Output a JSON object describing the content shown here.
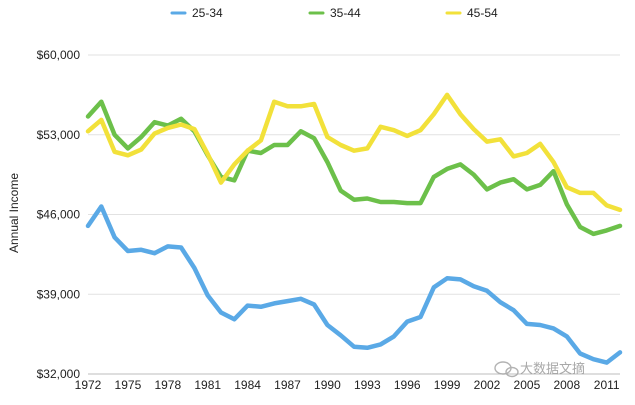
{
  "chart_data": {
    "type": "line",
    "ylabel": "Annual Income",
    "ylim": [
      32000,
      60000
    ],
    "y_ticks": [
      32000,
      39000,
      46000,
      53000,
      60000
    ],
    "y_tick_labels": [
      "$32,000",
      "$39,000",
      "$46,000",
      "$53,000",
      "$60,000"
    ],
    "xlim": [
      1972,
      2012
    ],
    "x_ticks": [
      1972,
      1975,
      1978,
      1981,
      1984,
      1987,
      1990,
      1993,
      1996,
      1999,
      2002,
      2005,
      2008,
      2011
    ],
    "x_tick_labels": [
      "1972",
      "1975",
      "1978",
      "1981",
      "1984",
      "1987",
      "1990",
      "1993",
      "1996",
      "1999",
      "2002",
      "2005",
      "2008",
      "2011"
    ],
    "grid": "horizontal",
    "legend_position": "top",
    "x": [
      1972,
      1973,
      1974,
      1975,
      1976,
      1977,
      1978,
      1979,
      1980,
      1981,
      1982,
      1983,
      1984,
      1985,
      1986,
      1987,
      1988,
      1989,
      1990,
      1991,
      1992,
      1993,
      1994,
      1995,
      1996,
      1997,
      1998,
      1999,
      2000,
      2001,
      2002,
      2003,
      2004,
      2005,
      2006,
      2007,
      2008,
      2009,
      2010,
      2011,
      2012
    ],
    "series": [
      {
        "name": "25-34",
        "color": "#5aa9e6",
        "values": [
          45000,
          46700,
          44000,
          42800,
          42900,
          42600,
          43200,
          43100,
          41300,
          38900,
          37400,
          36800,
          38000,
          37900,
          38200,
          38400,
          38600,
          38100,
          36300,
          35400,
          34400,
          34300,
          34600,
          35300,
          36600,
          37000,
          39600,
          40400,
          40300,
          39700,
          39300,
          38300,
          37600,
          36400,
          36300,
          36000,
          35300,
          33800,
          33300,
          33000,
          33900
        ]
      },
      {
        "name": "35-44",
        "color": "#6cc04a",
        "values": [
          54600,
          55900,
          53000,
          51800,
          52800,
          54100,
          53800,
          54400,
          53300,
          51200,
          49300,
          49000,
          51600,
          51400,
          52100,
          52100,
          53300,
          52700,
          50600,
          48100,
          47300,
          47400,
          47100,
          47100,
          47000,
          47000,
          49300,
          50000,
          50400,
          49500,
          48200,
          48800,
          49100,
          48200,
          48600,
          49800,
          46900,
          44900,
          44300,
          44600,
          45000
        ]
      },
      {
        "name": "45-54",
        "color": "#f2e13a",
        "values": [
          53300,
          54300,
          51500,
          51200,
          51700,
          53100,
          53600,
          53900,
          53500,
          51300,
          48800,
          50400,
          51600,
          52500,
          55900,
          55500,
          55500,
          55700,
          52800,
          52100,
          51600,
          51800,
          53700,
          53400,
          52900,
          53400,
          54800,
          56500,
          54800,
          53500,
          52400,
          52600,
          51100,
          51400,
          52200,
          50600,
          48400,
          47900,
          47900,
          46800,
          46400
        ]
      }
    ]
  },
  "watermark": {
    "text": "大数据文摘"
  }
}
